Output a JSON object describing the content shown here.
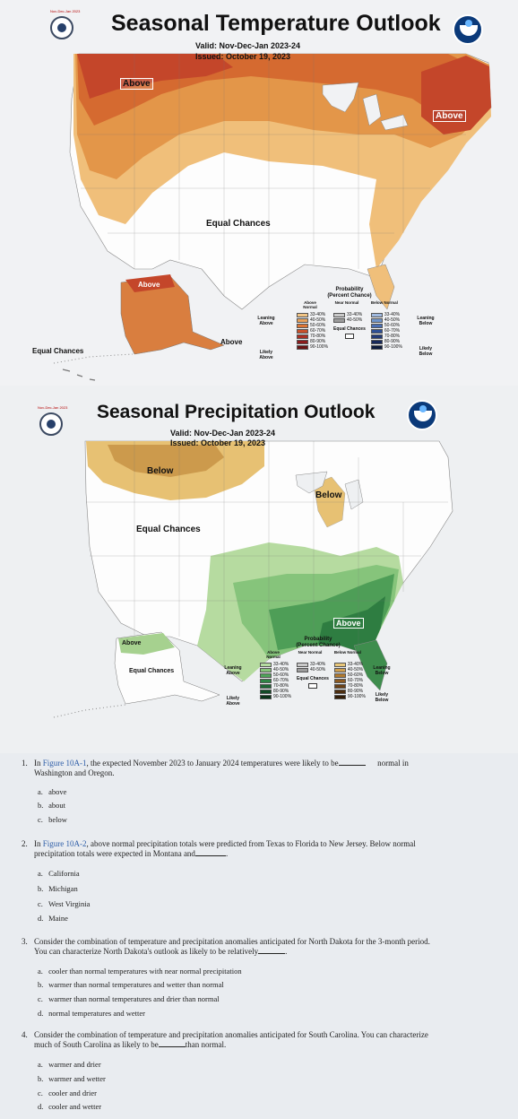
{
  "temperature_map": {
    "badge_date": "Nov-Dec-Jan 2023",
    "title": "Seasonal Temperature Outlook",
    "valid": "Valid: Nov-Dec-Jan 2023-24",
    "issued": "Issued: October 19, 2023",
    "labels": {
      "above_northwest": "Above",
      "above_northeast": "Above",
      "equal_chances_center": "Equal Chances",
      "above_alaska": "Above",
      "above_alaska_south": "Above",
      "equal_chances_hawaii": "Equal Chances"
    },
    "legend": {
      "title": "Probability",
      "subtitle": "(Percent Chance)",
      "col_above": "Above Normal",
      "col_near": "Near Normal",
      "col_below": "Below Normal",
      "leaning_above": "Leaning Above",
      "likely_above": "Likely Above",
      "leaning_below": "Leaning Below",
      "likely_below": "Likely Below",
      "equal_chances": "Equal Chances",
      "above_ranges": [
        "33-40%",
        "40-50%",
        "50-60%",
        "60-70%",
        "70-80%",
        "80-90%",
        "90-100%"
      ],
      "near_ranges": [
        "33-40%",
        "40-50%"
      ],
      "below_ranges": [
        "33-40%",
        "40-50%",
        "50-60%",
        "60-70%",
        "70-80%",
        "80-90%",
        "90-100%"
      ],
      "above_colors": [
        "#f2c585",
        "#e8a15a",
        "#de7636",
        "#c9502a",
        "#ab2f23",
        "#8c1c1c",
        "#6a1414"
      ],
      "near_colors": [
        "#c9c9c9",
        "#9c9c9c"
      ],
      "below_colors": [
        "#9fb9df",
        "#6f95cc",
        "#4a6fb4",
        "#2e4f96",
        "#223a78",
        "#16285a",
        "#0c1a3c"
      ]
    }
  },
  "precipitation_map": {
    "badge_date": "Nov-Dec-Jan 2023",
    "title": "Seasonal Precipitation Outlook",
    "valid": "Valid: Nov-Dec-Jan 2023-24",
    "issued": "Issued: October 19, 2023",
    "labels": {
      "below_northwest": "Below",
      "below_michigan": "Below",
      "equal_chances_center": "Equal Chances",
      "above_southeast": "Above",
      "above_alaska": "Above",
      "equal_chances_alaska": "Equal Chances"
    },
    "legend": {
      "title": "Probability",
      "subtitle": "(Percent Chance)",
      "col_above": "Above Normal",
      "col_near": "Near Normal",
      "col_below": "Below Normal",
      "leaning_above": "Leaning Above",
      "likely_above": "Likely Above",
      "leaning_below": "Leaning Below",
      "likely_below": "Likely Below",
      "equal_chances": "Equal Chances",
      "above_ranges": [
        "33-40%",
        "40-50%",
        "50-60%",
        "60-70%",
        "70-80%",
        "80-90%",
        "90-100%"
      ],
      "near_ranges": [
        "33-40%",
        "40-50%"
      ],
      "below_ranges": [
        "33-40%",
        "40-50%",
        "50-60%",
        "60-70%",
        "70-80%",
        "80-90%",
        "90-100%"
      ],
      "above_colors": [
        "#b5dca0",
        "#86c57a",
        "#4fa35a",
        "#2e8444",
        "#1d6634",
        "#124a26",
        "#0a3218"
      ],
      "near_colors": [
        "#c9c9c9",
        "#9c9c9c"
      ],
      "below_colors": [
        "#e8c77a",
        "#cf9f4f",
        "#b07a30",
        "#8c5a22",
        "#6b4218",
        "#4d2e10",
        "#331e09"
      ]
    }
  },
  "questions": [
    {
      "number": "1.",
      "pre": "In ",
      "figure": "Figure 10A-1",
      "post": ", the expected November 2023 to January 2024 temperatures were likely to be",
      "after_blank": "normal in",
      "line2": "Washington and Oregon.",
      "options": [
        {
          "letter": "a.",
          "text": "above"
        },
        {
          "letter": "b.",
          "text": "about"
        },
        {
          "letter": "c.",
          "text": "below"
        }
      ]
    },
    {
      "number": "2.",
      "pre": "In ",
      "figure": "Figure 10A-2",
      "post": ", above normal precipitation totals were predicted from Texas to Florida to New Jersey. Below normal",
      "line2": "precipitation totals were expected in Montana and",
      "after_blank": ".",
      "options": [
        {
          "letter": "a.",
          "text": "California"
        },
        {
          "letter": "b.",
          "text": "Michigan"
        },
        {
          "letter": "c.",
          "text": "West Virginia"
        },
        {
          "letter": "d.",
          "text": "Maine"
        }
      ]
    },
    {
      "number": "3.",
      "line1": "Consider the combination of temperature and precipitation anomalies anticipated for North Dakota for the 3-month period.",
      "line2": "You can characterize North Dakota's outlook as likely to be relatively",
      "after_blank": ".",
      "options": [
        {
          "letter": "a.",
          "text": "cooler than normal temperatures with near normal precipitation"
        },
        {
          "letter": "b.",
          "text": "warmer than normal temperatures and wetter than normal"
        },
        {
          "letter": "c.",
          "text": "warmer than normal temperatures and drier than normal"
        },
        {
          "letter": "d.",
          "text": "normal temperatures and wetter"
        }
      ]
    },
    {
      "number": "4.",
      "line1": "Consider the combination of temperature and precipitation anomalies anticipated for South Carolina. You can characterize",
      "line2": "much of South Carolina as likely to be",
      "after_blank": "than normal.",
      "options": [
        {
          "letter": "a.",
          "text": "warmer and drier"
        },
        {
          "letter": "b.",
          "text": "warmer and wetter"
        },
        {
          "letter": "c.",
          "text": "cooler and drier"
        },
        {
          "letter": "d.",
          "text": "cooler and wetter"
        }
      ]
    }
  ]
}
